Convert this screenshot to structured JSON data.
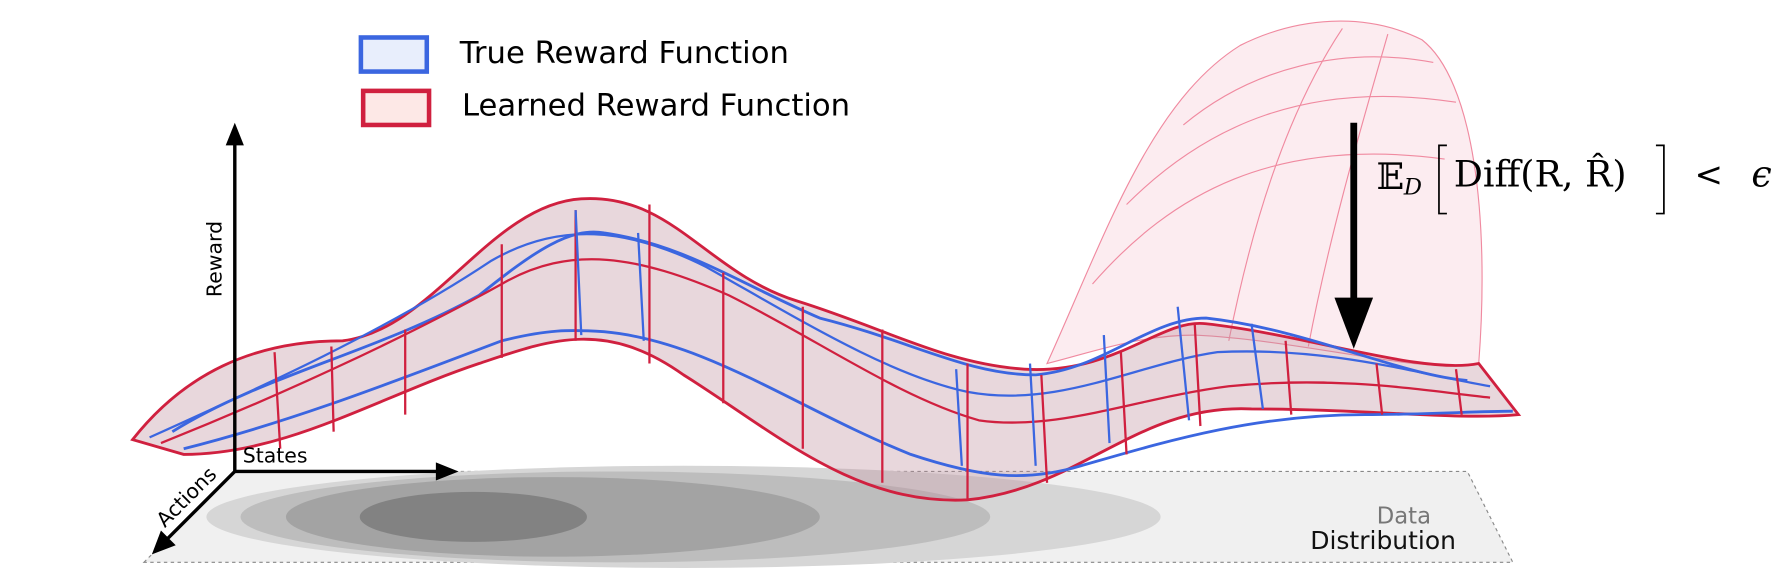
{
  "legend": {
    "items": [
      {
        "label": "True Reward Function"
      },
      {
        "label": "Learned Reward Function"
      }
    ]
  },
  "axes": {
    "reward": "Reward",
    "states": "States",
    "actions": "Actions"
  },
  "distribution": {
    "line1": "Data",
    "line2": "Distribution"
  },
  "formula": {
    "expectation": "𝔼",
    "subscript": "D",
    "body": "Diff(R, R̂)",
    "relation": "<",
    "bound": "ϵ"
  }
}
